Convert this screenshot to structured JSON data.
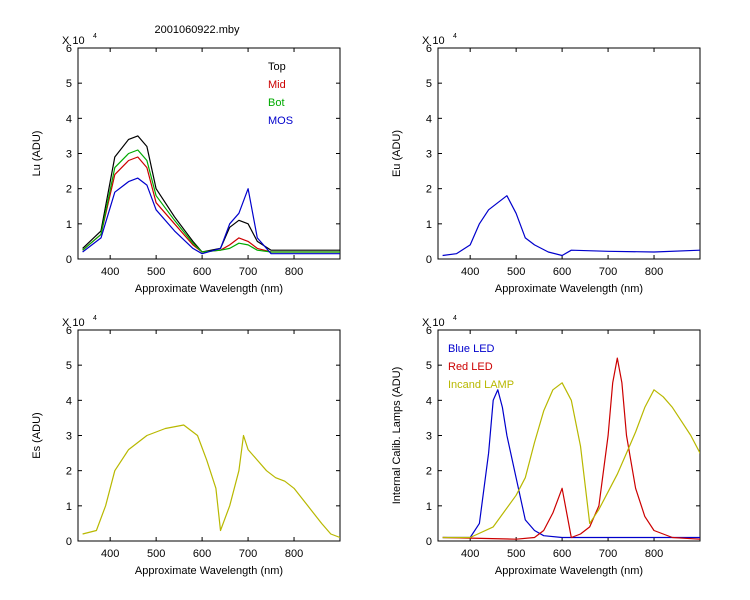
{
  "figure_title": "2001060922.mby",
  "chart_data": [
    {
      "id": "lu",
      "type": "line",
      "ylabel": "Lu (ADU)",
      "xlabel": "Approximate Wavelength (nm)",
      "xlim": [
        330,
        900
      ],
      "ylim": [
        0,
        6
      ],
      "y_multiplier": "X 10",
      "y_exponent": "4",
      "xticks": [
        "400",
        "500",
        "600",
        "700",
        "800"
      ],
      "yticks": [
        "0",
        "1",
        "2",
        "3",
        "4",
        "5",
        "6"
      ],
      "grid": false,
      "legend": "top-right",
      "series": [
        {
          "name": "Top",
          "color": "#000000",
          "x": [
            340,
            380,
            410,
            440,
            460,
            480,
            500,
            540,
            580,
            600,
            640,
            660,
            680,
            700,
            720,
            750,
            900
          ],
          "y": [
            0.3,
            0.8,
            2.9,
            3.4,
            3.5,
            3.2,
            2.0,
            1.2,
            0.5,
            0.2,
            0.3,
            0.9,
            1.1,
            1.0,
            0.5,
            0.25,
            0.25
          ]
        },
        {
          "name": "Mid",
          "color": "#cc0000",
          "x": [
            340,
            380,
            410,
            440,
            460,
            480,
            500,
            540,
            580,
            600,
            640,
            660,
            680,
            700,
            720,
            750,
            900
          ],
          "y": [
            0.25,
            0.7,
            2.4,
            2.8,
            2.9,
            2.6,
            1.6,
            1.0,
            0.4,
            0.2,
            0.25,
            0.4,
            0.6,
            0.5,
            0.3,
            0.2,
            0.2
          ]
        },
        {
          "name": "Bot",
          "color": "#00aa00",
          "x": [
            340,
            380,
            410,
            440,
            460,
            480,
            500,
            540,
            580,
            600,
            640,
            660,
            680,
            700,
            720,
            750,
            900
          ],
          "y": [
            0.25,
            0.7,
            2.6,
            3.0,
            3.1,
            2.8,
            1.8,
            1.1,
            0.45,
            0.2,
            0.25,
            0.3,
            0.45,
            0.4,
            0.25,
            0.2,
            0.2
          ]
        },
        {
          "name": "MOS",
          "color": "#0000cc",
          "x": [
            340,
            380,
            410,
            440,
            460,
            480,
            500,
            540,
            580,
            600,
            640,
            660,
            680,
            700,
            720,
            750,
            900
          ],
          "y": [
            0.2,
            0.6,
            1.9,
            2.2,
            2.3,
            2.1,
            1.4,
            0.8,
            0.3,
            0.15,
            0.3,
            1.0,
            1.3,
            2.0,
            0.6,
            0.15,
            0.15
          ]
        }
      ]
    },
    {
      "id": "eu",
      "type": "line",
      "ylabel": "Eu  (ADU)",
      "xlabel": "Approximate Wavelength (nm)",
      "xlim": [
        330,
        900
      ],
      "ylim": [
        0,
        6
      ],
      "y_multiplier": "X 10",
      "y_exponent": "4",
      "xticks": [
        "400",
        "500",
        "600",
        "700",
        "800"
      ],
      "yticks": [
        "0",
        "1",
        "2",
        "3",
        "4",
        "5",
        "6"
      ],
      "grid": false,
      "series": [
        {
          "name": "",
          "color": "#0000cc",
          "x": [
            340,
            370,
            400,
            420,
            440,
            460,
            480,
            500,
            520,
            540,
            570,
            600,
            620,
            700,
            800,
            900
          ],
          "y": [
            0.1,
            0.15,
            0.4,
            1.0,
            1.4,
            1.6,
            1.8,
            1.3,
            0.6,
            0.4,
            0.2,
            0.1,
            0.25,
            0.22,
            0.2,
            0.25
          ]
        }
      ]
    },
    {
      "id": "es",
      "type": "line",
      "ylabel": "Es  (ADU)",
      "xlabel": "Approximate Wavelength (nm)",
      "xlim": [
        330,
        900
      ],
      "ylim": [
        0,
        6
      ],
      "y_multiplier": "X 10",
      "y_exponent": "4",
      "xticks": [
        "400",
        "500",
        "600",
        "700",
        "800"
      ],
      "yticks": [
        "0",
        "1",
        "2",
        "3",
        "4",
        "5",
        "6"
      ],
      "grid": false,
      "series": [
        {
          "name": "",
          "color": "#b8b800",
          "x": [
            340,
            370,
            390,
            410,
            440,
            480,
            520,
            560,
            590,
            610,
            630,
            640,
            660,
            680,
            690,
            700,
            720,
            740,
            760,
            780,
            800,
            830,
            860,
            880,
            900
          ],
          "y": [
            0.2,
            0.3,
            1.0,
            2.0,
            2.6,
            3.0,
            3.2,
            3.3,
            3.0,
            2.3,
            1.5,
            0.3,
            1.0,
            2.0,
            3.0,
            2.6,
            2.3,
            2.0,
            1.8,
            1.7,
            1.5,
            1.0,
            0.5,
            0.2,
            0.1
          ]
        }
      ]
    },
    {
      "id": "lamps",
      "type": "line",
      "ylabel": "Internal Calib. Lamps (ADU)",
      "xlabel": "Approximate Wavelength (nm)",
      "xlim": [
        330,
        900
      ],
      "ylim": [
        0,
        6
      ],
      "y_multiplier": "X 10",
      "y_exponent": "4",
      "xticks": [
        "400",
        "500",
        "600",
        "700",
        "800"
      ],
      "yticks": [
        "0",
        "1",
        "2",
        "3",
        "4",
        "5",
        "6"
      ],
      "grid": false,
      "legend": "top-left",
      "series": [
        {
          "name": "Blue LED",
          "color": "#0000cc",
          "x": [
            340,
            400,
            420,
            440,
            450,
            460,
            470,
            480,
            500,
            520,
            540,
            560,
            600,
            700,
            800,
            900
          ],
          "y": [
            0.1,
            0.1,
            0.5,
            2.5,
            4.0,
            4.3,
            3.8,
            3.0,
            1.8,
            0.6,
            0.3,
            0.15,
            0.1,
            0.1,
            0.1,
            0.1
          ]
        },
        {
          "name": "Red LED",
          "color": "#cc0000",
          "x": [
            340,
            500,
            540,
            560,
            580,
            600,
            620,
            640,
            660,
            680,
            700,
            710,
            720,
            730,
            740,
            760,
            780,
            800,
            840,
            900
          ],
          "y": [
            0.1,
            0.05,
            0.1,
            0.3,
            0.8,
            1.5,
            0.1,
            0.2,
            0.4,
            1.0,
            3.0,
            4.5,
            5.2,
            4.5,
            3.0,
            1.5,
            0.7,
            0.3,
            0.1,
            0.05
          ]
        },
        {
          "name": "Incand LAMP",
          "color": "#b8b800",
          "x": [
            340,
            400,
            450,
            500,
            520,
            540,
            560,
            580,
            600,
            620,
            640,
            660,
            680,
            700,
            720,
            740,
            760,
            780,
            800,
            820,
            840,
            860,
            880,
            900
          ],
          "y": [
            0.1,
            0.1,
            0.4,
            1.3,
            1.8,
            2.8,
            3.7,
            4.3,
            4.5,
            4.0,
            2.7,
            0.5,
            0.9,
            1.4,
            1.9,
            2.5,
            3.1,
            3.8,
            4.3,
            4.1,
            3.8,
            3.4,
            3.0,
            2.5
          ]
        }
      ]
    }
  ]
}
